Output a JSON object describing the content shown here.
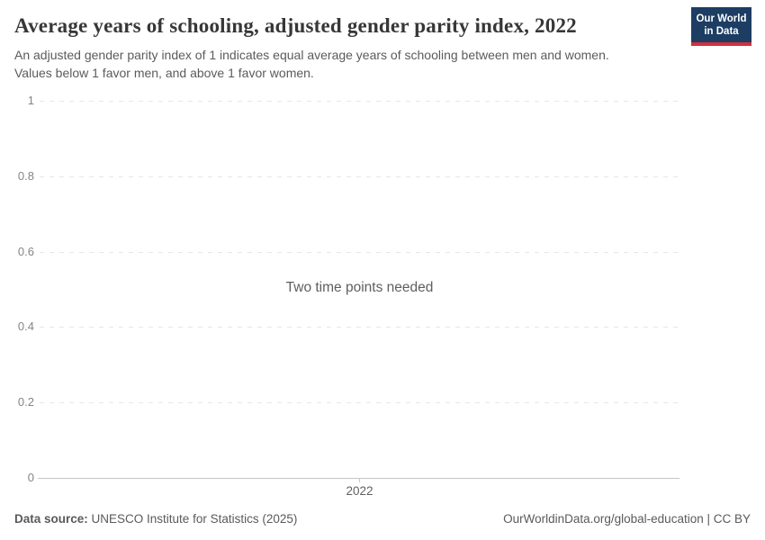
{
  "header": {
    "title": "Average years of schooling, adjusted gender parity index, 2022",
    "subtitle_lines": [
      "An adjusted gender parity index of 1 indicates equal average years of schooling between men and women.",
      "Values below 1 favor men, and above 1 favor women."
    ],
    "logo": {
      "line1": "Our World",
      "line2": "in Data",
      "bg_color": "#1d3d63",
      "stripe_color": "#cf303e"
    }
  },
  "chart_data": {
    "type": "line",
    "title": "Average years of schooling, adjusted gender parity index, 2022",
    "series": [],
    "message": "Two time points needed",
    "x_ticks": [
      "2022"
    ],
    "y_ticks": [
      "1",
      "0.8",
      "0.6",
      "0.4",
      "0.2",
      "0"
    ],
    "ylim": [
      0,
      1
    ],
    "grid": "horizontal-dashed",
    "legend_position": "none"
  },
  "footer": {
    "source_label": "Data source:",
    "source_text": " UNESCO Institute for Statistics (2025)",
    "rights": "OurWorldinData.org/global-education | CC BY"
  },
  "colors": {
    "title_text": "#373737",
    "subtitle_text": "#5b5b5b",
    "y_tick_text": "#858585",
    "x_tick_text": "#606060",
    "gridline": "#e7e7e7",
    "axis_line": "#c6c6c6",
    "logo_navy": "#1d3d63",
    "logo_red": "#cf303e"
  }
}
